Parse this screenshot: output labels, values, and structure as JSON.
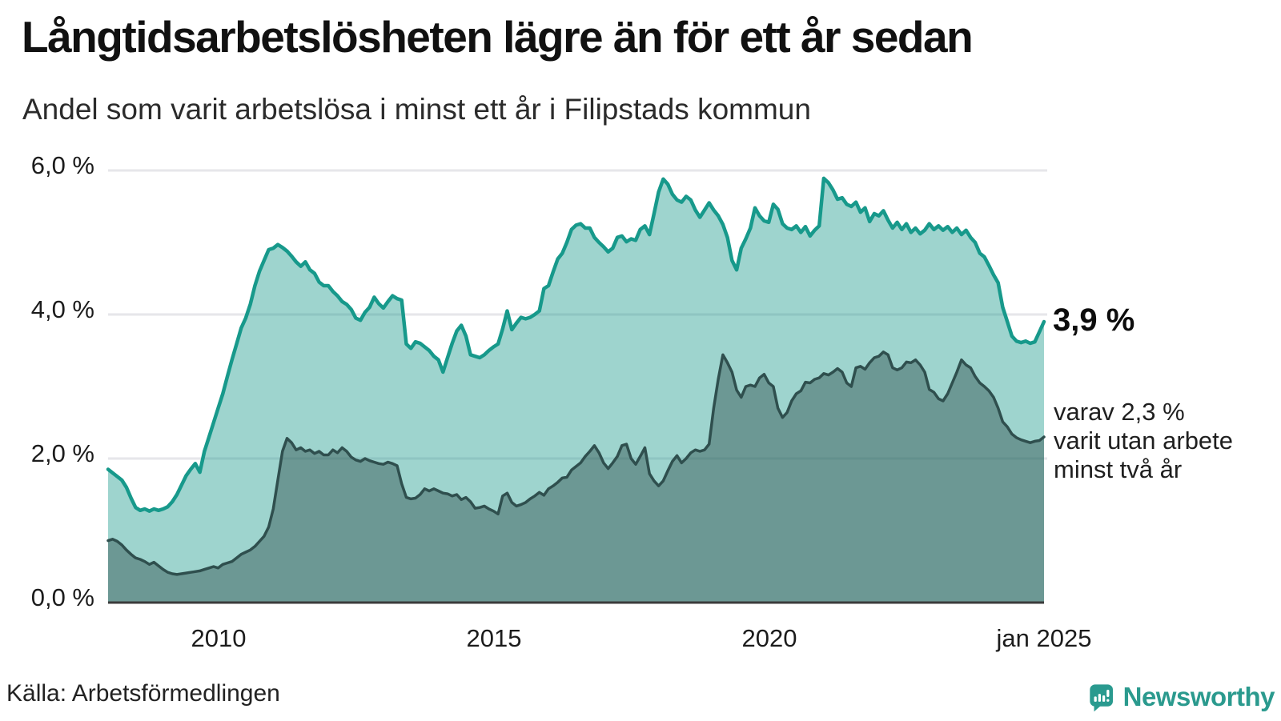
{
  "header": {
    "title": "Långtidsarbetslösheten lägre än för ett år sedan",
    "subtitle": "Andel som varit arbetslösa i minst ett år i Filipstads kommun"
  },
  "footer": {
    "source": "Källa: Arbetsförmedlingen",
    "logo_text": "Newsworthy"
  },
  "colors": {
    "line_1yr": "#17998b",
    "fill_1yr": "#9fd4cf",
    "line_2yr": "#2f4f4e",
    "fill_2yr": "#6f9c98",
    "gridline": "#e6e6ea",
    "axis_line": "#3b3b3b",
    "logo_teal": "#2a9a8f"
  },
  "chart_data": {
    "type": "area",
    "title": "Långtidsarbetslösheten lägre än för ett år sedan",
    "subtitle": "Andel som varit arbetslösa i minst ett år i Filipstads kommun",
    "x_start": "2008-01",
    "x_end": "2025-01",
    "x_interval": "monthly",
    "xlabel": "",
    "ylabel": "",
    "ylim": [
      0,
      6.0
    ],
    "grid": "horizontal",
    "legend_position": "none",
    "y_ticks": [
      {
        "label": "6,0 %",
        "value": 6.0
      },
      {
        "label": "4,0 %",
        "value": 4.0
      },
      {
        "label": "2,0 %",
        "value": 2.0
      },
      {
        "label": "0,0 %",
        "value": 0.0
      }
    ],
    "x_ticks": [
      {
        "label": "2010",
        "value": "2010-01"
      },
      {
        "label": "2015",
        "value": "2015-01"
      },
      {
        "label": "2020",
        "value": "2020-01"
      },
      {
        "label": "jan 2025",
        "value": "2025-01"
      }
    ],
    "annotation_primary": {
      "text": "3,9 %",
      "series": "minst ett år",
      "value": 3.9
    },
    "annotation_secondary": {
      "lines": [
        "varav 2,3 %",
        "varit utan arbete",
        "minst två år"
      ],
      "series": "minst två år",
      "value": 2.3
    },
    "series": [
      {
        "name": "Arbetslösa minst ett år",
        "last_value": 3.9,
        "values": [
          1.85,
          1.8,
          1.75,
          1.7,
          1.6,
          1.45,
          1.32,
          1.28,
          1.3,
          1.27,
          1.3,
          1.28,
          1.3,
          1.33,
          1.4,
          1.5,
          1.63,
          1.76,
          1.85,
          1.93,
          1.81,
          2.1,
          2.3,
          2.5,
          2.7,
          2.9,
          3.14,
          3.37,
          3.59,
          3.81,
          3.95,
          4.14,
          4.4,
          4.6,
          4.75,
          4.9,
          4.92,
          4.97,
          4.93,
          4.88,
          4.81,
          4.73,
          4.67,
          4.73,
          4.62,
          4.57,
          4.45,
          4.4,
          4.4,
          4.32,
          4.26,
          4.18,
          4.14,
          4.07,
          3.95,
          3.92,
          4.03,
          4.1,
          4.24,
          4.15,
          4.09,
          4.18,
          4.26,
          4.22,
          4.2,
          3.59,
          3.53,
          3.62,
          3.6,
          3.55,
          3.5,
          3.42,
          3.37,
          3.2,
          3.4,
          3.6,
          3.77,
          3.85,
          3.7,
          3.44,
          3.42,
          3.4,
          3.44,
          3.5,
          3.55,
          3.59,
          3.8,
          4.05,
          3.79,
          3.88,
          3.96,
          3.94,
          3.96,
          4.0,
          4.05,
          4.36,
          4.4,
          4.59,
          4.77,
          4.85,
          5.0,
          5.18,
          5.24,
          5.26,
          5.2,
          5.2,
          5.07,
          5.0,
          4.94,
          4.87,
          4.92,
          5.07,
          5.09,
          5.01,
          5.05,
          5.03,
          5.18,
          5.23,
          5.11,
          5.4,
          5.7,
          5.88,
          5.81,
          5.67,
          5.59,
          5.56,
          5.64,
          5.59,
          5.45,
          5.35,
          5.45,
          5.55,
          5.45,
          5.37,
          5.25,
          5.07,
          4.75,
          4.62,
          4.92,
          5.05,
          5.2,
          5.48,
          5.37,
          5.3,
          5.28,
          5.53,
          5.46,
          5.26,
          5.2,
          5.18,
          5.23,
          5.14,
          5.22,
          5.09,
          5.17,
          5.23,
          5.89,
          5.83,
          5.73,
          5.6,
          5.62,
          5.53,
          5.5,
          5.56,
          5.42,
          5.48,
          5.29,
          5.4,
          5.37,
          5.44,
          5.31,
          5.2,
          5.28,
          5.18,
          5.26,
          5.14,
          5.2,
          5.12,
          5.17,
          5.26,
          5.18,
          5.23,
          5.17,
          5.22,
          5.14,
          5.2,
          5.11,
          5.17,
          5.07,
          5.0,
          4.85,
          4.8,
          4.68,
          4.55,
          4.44,
          4.1,
          3.9,
          3.7,
          3.63,
          3.61,
          3.63,
          3.6,
          3.62,
          3.76,
          3.9
        ]
      },
      {
        "name": "Arbetslösa minst två år",
        "last_value": 2.3,
        "values": [
          0.86,
          0.88,
          0.85,
          0.8,
          0.73,
          0.67,
          0.62,
          0.6,
          0.57,
          0.53,
          0.56,
          0.51,
          0.46,
          0.42,
          0.4,
          0.39,
          0.4,
          0.41,
          0.42,
          0.43,
          0.44,
          0.46,
          0.48,
          0.5,
          0.48,
          0.53,
          0.55,
          0.57,
          0.62,
          0.67,
          0.7,
          0.73,
          0.78,
          0.85,
          0.92,
          1.05,
          1.3,
          1.7,
          2.1,
          2.28,
          2.22,
          2.12,
          2.15,
          2.1,
          2.12,
          2.07,
          2.1,
          2.05,
          2.05,
          2.12,
          2.08,
          2.15,
          2.1,
          2.02,
          1.98,
          1.96,
          2.0,
          1.97,
          1.95,
          1.93,
          1.92,
          1.95,
          1.93,
          1.9,
          1.65,
          1.46,
          1.44,
          1.45,
          1.5,
          1.58,
          1.55,
          1.58,
          1.55,
          1.52,
          1.51,
          1.48,
          1.5,
          1.43,
          1.46,
          1.4,
          1.31,
          1.32,
          1.34,
          1.3,
          1.27,
          1.23,
          1.48,
          1.52,
          1.39,
          1.34,
          1.36,
          1.39,
          1.44,
          1.48,
          1.53,
          1.49,
          1.58,
          1.62,
          1.67,
          1.73,
          1.74,
          1.84,
          1.89,
          1.94,
          2.03,
          2.1,
          2.18,
          2.08,
          1.94,
          1.86,
          1.94,
          2.03,
          2.18,
          2.2,
          2.0,
          1.92,
          2.03,
          2.15,
          1.79,
          1.69,
          1.62,
          1.69,
          1.83,
          1.96,
          2.04,
          1.94,
          2.0,
          2.08,
          2.12,
          2.1,
          2.12,
          2.2,
          2.7,
          3.1,
          3.44,
          3.33,
          3.2,
          2.95,
          2.85,
          3.0,
          3.02,
          3.0,
          3.12,
          3.17,
          3.05,
          3.0,
          2.7,
          2.57,
          2.64,
          2.8,
          2.9,
          2.94,
          3.06,
          3.05,
          3.1,
          3.12,
          3.18,
          3.16,
          3.2,
          3.25,
          3.2,
          3.05,
          3.0,
          3.26,
          3.28,
          3.24,
          3.33,
          3.4,
          3.42,
          3.48,
          3.44,
          3.26,
          3.23,
          3.26,
          3.34,
          3.33,
          3.37,
          3.3,
          3.2,
          2.96,
          2.92,
          2.83,
          2.8,
          2.9,
          3.05,
          3.2,
          3.37,
          3.3,
          3.26,
          3.14,
          3.05,
          3.0,
          2.94,
          2.85,
          2.7,
          2.51,
          2.44,
          2.34,
          2.29,
          2.26,
          2.24,
          2.22,
          2.24,
          2.25,
          2.3
        ]
      }
    ]
  }
}
